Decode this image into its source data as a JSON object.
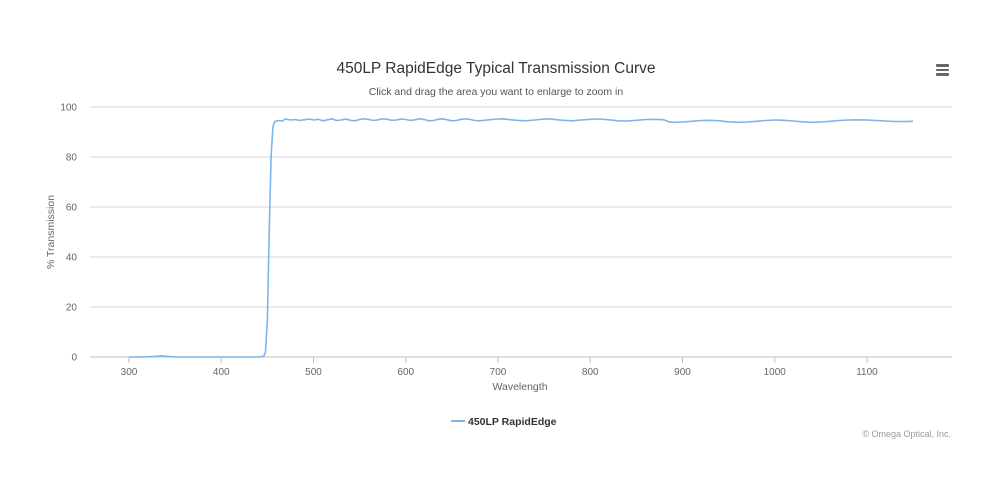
{
  "menu": {
    "icon": "hamburger-menu-icon"
  },
  "chart_data": {
    "type": "line",
    "title": "450LP RapidEdge Typical Transmission Curve",
    "subtitle": "Click and drag the area you want to enlarge to zoom in",
    "xlabel": "Wavelength",
    "ylabel": "% Transmission",
    "xlim": [
      300,
      1150
    ],
    "ylim": [
      0,
      100
    ],
    "x_ticks": [
      300,
      400,
      500,
      600,
      700,
      800,
      900,
      1000,
      1100
    ],
    "x_tick_labels": [
      "300",
      "400",
      "500",
      "600",
      "700",
      "800",
      "900",
      "1000",
      "1100"
    ],
    "y_ticks": [
      0,
      20,
      40,
      60,
      80,
      100
    ],
    "y_tick_labels": [
      "0",
      "20",
      "40",
      "60",
      "80",
      "100"
    ],
    "grid": true,
    "legend_placement": "bottom-center",
    "credits": "© Omega Optical, Inc.",
    "colors": {
      "series": "#7cb5ec"
    },
    "series": [
      {
        "name": "450LP RapidEdge",
        "points": [
          [
            300,
            0
          ],
          [
            320,
            0.1
          ],
          [
            330,
            0.3
          ],
          [
            335,
            0.5
          ],
          [
            340,
            0.3
          ],
          [
            350,
            0
          ],
          [
            400,
            0
          ],
          [
            440,
            0
          ],
          [
            446,
            0.3
          ],
          [
            448,
            2
          ],
          [
            450,
            15
          ],
          [
            452,
            50
          ],
          [
            454,
            80
          ],
          [
            456,
            92
          ],
          [
            458,
            94.2
          ],
          [
            462,
            94.6
          ],
          [
            466,
            94.4
          ],
          [
            470,
            95.2
          ],
          [
            475,
            94.8
          ],
          [
            480,
            95.0
          ],
          [
            485,
            94.6
          ],
          [
            490,
            94.9
          ],
          [
            495,
            95.2
          ],
          [
            500,
            94.8
          ],
          [
            505,
            95.1
          ],
          [
            510,
            94.5
          ],
          [
            515,
            94.9
          ],
          [
            520,
            95.3
          ],
          [
            525,
            94.6
          ],
          [
            530,
            94.8
          ],
          [
            535,
            95.2
          ],
          [
            540,
            94.7
          ],
          [
            545,
            94.5
          ],
          [
            550,
            95.0
          ],
          [
            555,
            95.3
          ],
          [
            560,
            95.0
          ],
          [
            565,
            94.6
          ],
          [
            570,
            94.9
          ],
          [
            575,
            95.3
          ],
          [
            580,
            95.1
          ],
          [
            585,
            94.7
          ],
          [
            590,
            94.8
          ],
          [
            595,
            95.2
          ],
          [
            600,
            95.0
          ],
          [
            605,
            94.6
          ],
          [
            610,
            94.9
          ],
          [
            615,
            95.3
          ],
          [
            620,
            95.0
          ],
          [
            625,
            94.5
          ],
          [
            630,
            94.6
          ],
          [
            635,
            95.1
          ],
          [
            640,
            95.3
          ],
          [
            645,
            94.9
          ],
          [
            650,
            94.5
          ],
          [
            655,
            94.6
          ],
          [
            660,
            95.1
          ],
          [
            665,
            95.3
          ],
          [
            670,
            95.0
          ],
          [
            675,
            94.6
          ],
          [
            680,
            94.5
          ],
          [
            690,
            94.9
          ],
          [
            700,
            95.2
          ],
          [
            705,
            95.3
          ],
          [
            710,
            95.1
          ],
          [
            720,
            94.7
          ],
          [
            730,
            94.5
          ],
          [
            740,
            94.8
          ],
          [
            750,
            95.2
          ],
          [
            755,
            95.3
          ],
          [
            760,
            95.1
          ],
          [
            770,
            94.7
          ],
          [
            780,
            94.5
          ],
          [
            790,
            94.8
          ],
          [
            800,
            95.1
          ],
          [
            810,
            95.2
          ],
          [
            820,
            94.9
          ],
          [
            830,
            94.5
          ],
          [
            840,
            94.4
          ],
          [
            850,
            94.7
          ],
          [
            860,
            95.0
          ],
          [
            870,
            95.1
          ],
          [
            880,
            94.9
          ],
          [
            885,
            94.1
          ],
          [
            890,
            93.9
          ],
          [
            900,
            94.0
          ],
          [
            910,
            94.3
          ],
          [
            920,
            94.6
          ],
          [
            930,
            94.7
          ],
          [
            940,
            94.5
          ],
          [
            950,
            94.1
          ],
          [
            960,
            93.9
          ],
          [
            970,
            94.0
          ],
          [
            980,
            94.3
          ],
          [
            990,
            94.6
          ],
          [
            1000,
            94.8
          ],
          [
            1010,
            94.7
          ],
          [
            1020,
            94.4
          ],
          [
            1030,
            94.1
          ],
          [
            1040,
            93.9
          ],
          [
            1050,
            94.0
          ],
          [
            1060,
            94.3
          ],
          [
            1070,
            94.6
          ],
          [
            1080,
            94.8
          ],
          [
            1090,
            94.9
          ],
          [
            1100,
            94.8
          ],
          [
            1110,
            94.6
          ],
          [
            1120,
            94.4
          ],
          [
            1130,
            94.2
          ],
          [
            1140,
            94.2
          ],
          [
            1150,
            94.3
          ]
        ]
      }
    ]
  }
}
